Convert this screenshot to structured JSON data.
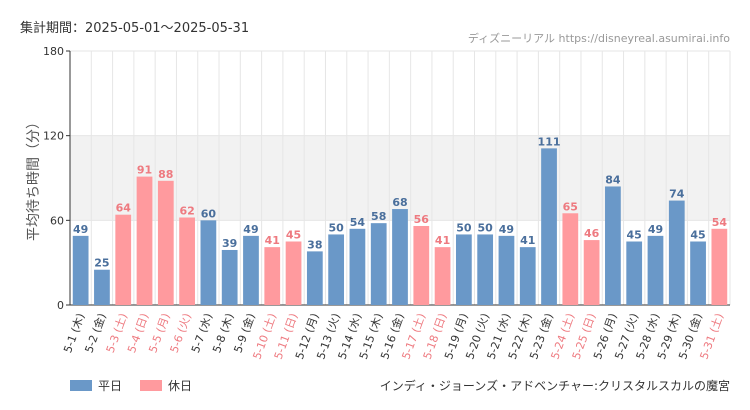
{
  "header": {
    "period_label": "集計期間：2025-05-01〜2025-05-31",
    "watermark": "ディズニーリアル https://disneyreal.asumirai.info"
  },
  "footer": {
    "attraction": "インディ・ジョーンズ・アドベンチャー:クリスタルスカルの魔宮"
  },
  "legend": [
    {
      "label": "平日",
      "color": "#6a98c8"
    },
    {
      "label": "休日",
      "color": "#ff9a9e"
    }
  ],
  "colors": {
    "weekday": "#6a98c8",
    "holiday": "#ff9a9e",
    "weekday_text": "#4a6f9c",
    "holiday_text": "#ee7a80",
    "band": "#f2f2f2",
    "grid": "#e6e6e6"
  },
  "chart_data": {
    "type": "bar",
    "title": "",
    "xlabel": "",
    "ylabel": "平均待ち時間（分）",
    "ylim": [
      0,
      180
    ],
    "yticks": [
      0,
      60,
      120,
      180
    ],
    "band": [
      60,
      120
    ],
    "grid": true,
    "categories": [
      "5-1 (木)",
      "5-2 (金)",
      "5-3 (土)",
      "5-4 (日)",
      "5-5 (月)",
      "5-6 (火)",
      "5-7 (水)",
      "5-8 (木)",
      "5-9 (金)",
      "5-10 (土)",
      "5-11 (日)",
      "5-12 (月)",
      "5-13 (火)",
      "5-14 (水)",
      "5-15 (木)",
      "5-16 (金)",
      "5-17 (土)",
      "5-18 (日)",
      "5-19 (月)",
      "5-20 (火)",
      "5-21 (水)",
      "5-22 (木)",
      "5-23 (金)",
      "5-24 (土)",
      "5-25 (日)",
      "5-26 (月)",
      "5-27 (火)",
      "5-28 (水)",
      "5-29 (木)",
      "5-30 (金)",
      "5-31 (土)"
    ],
    "values": [
      49,
      25,
      64,
      91,
      88,
      62,
      60,
      39,
      49,
      41,
      45,
      38,
      50,
      54,
      58,
      68,
      56,
      41,
      50,
      50,
      49,
      41,
      111,
      65,
      46,
      84,
      45,
      49,
      74,
      45,
      54
    ],
    "day_type": [
      "weekday",
      "weekday",
      "holiday",
      "holiday",
      "holiday",
      "holiday",
      "weekday",
      "weekday",
      "weekday",
      "holiday",
      "holiday",
      "weekday",
      "weekday",
      "weekday",
      "weekday",
      "weekday",
      "holiday",
      "holiday",
      "weekday",
      "weekday",
      "weekday",
      "weekday",
      "weekday",
      "holiday",
      "holiday",
      "weekday",
      "weekday",
      "weekday",
      "weekday",
      "weekday",
      "holiday"
    ]
  }
}
